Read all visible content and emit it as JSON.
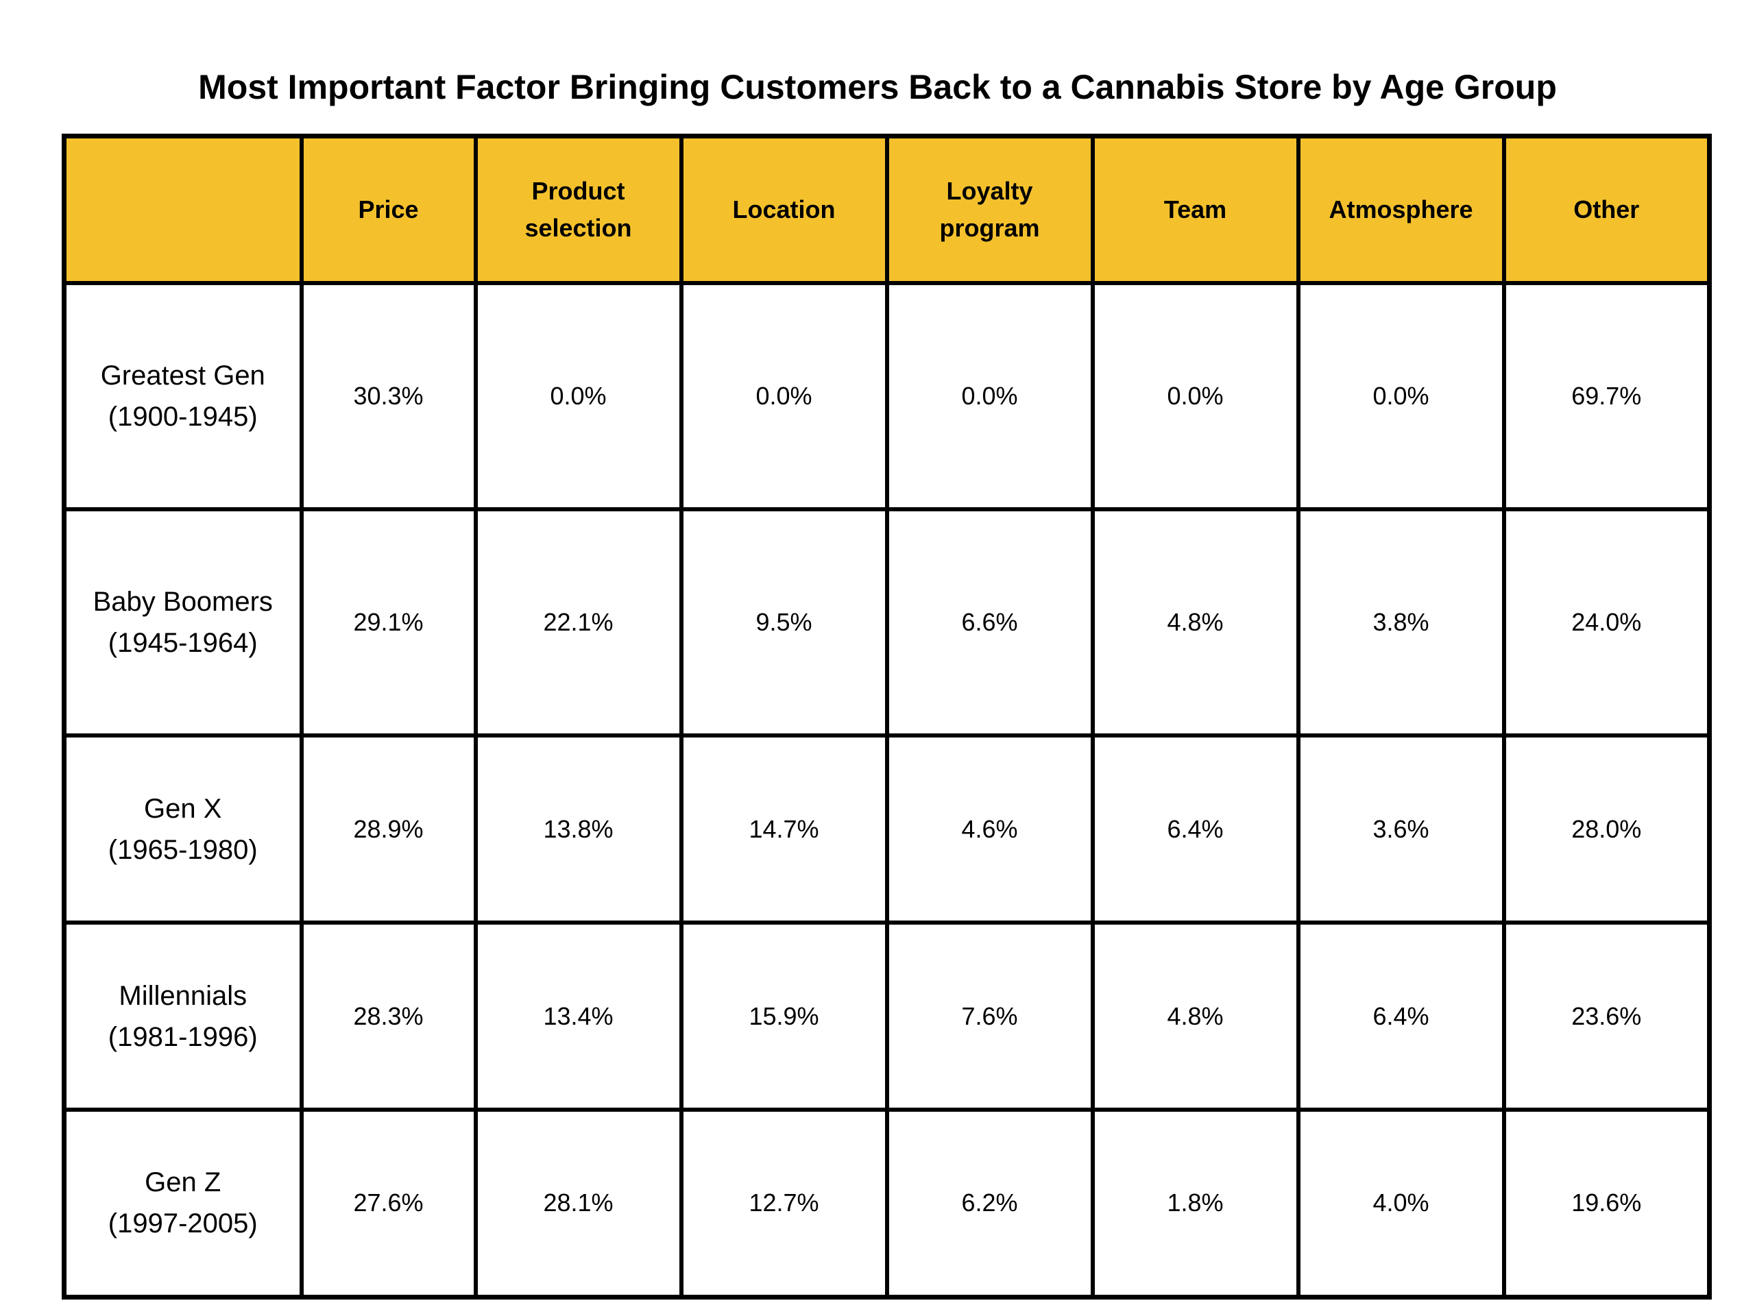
{
  "chart_data": {
    "type": "table",
    "title": "Most Important Factor Bringing Customers Back to a Cannabis Store by Age Group",
    "header_color": "#F4C12D",
    "columns": [
      [
        "Price"
      ],
      [
        "Product",
        "selection"
      ],
      [
        "Location"
      ],
      [
        "Loyalty",
        "program"
      ],
      [
        "Team"
      ],
      [
        "Atmosphere"
      ],
      [
        "Other"
      ]
    ],
    "rows": [
      {
        "group": "Greatest Gen",
        "years": "(1900-1945)",
        "values": [
          "30.3%",
          "0.0%",
          "0.0%",
          "0.0%",
          "0.0%",
          "0.0%",
          "69.7%"
        ]
      },
      {
        "group": "Baby Boomers",
        "years": "(1945-1964)",
        "values": [
          "29.1%",
          "22.1%",
          "9.5%",
          "6.6%",
          "4.8%",
          "3.8%",
          "24.0%"
        ]
      },
      {
        "group": "Gen X",
        "years": "(1965-1980)",
        "values": [
          "28.9%",
          "13.8%",
          "14.7%",
          "4.6%",
          "6.4%",
          "3.6%",
          "28.0%"
        ]
      },
      {
        "group": "Millennials",
        "years": "(1981-1996)",
        "values": [
          "28.3%",
          "13.4%",
          "15.9%",
          "7.6%",
          "4.8%",
          "6.4%",
          "23.6%"
        ]
      },
      {
        "group": "Gen Z",
        "years": "(1997-2005)",
        "values": [
          "27.6%",
          "28.1%",
          "12.7%",
          "6.2%",
          "1.8%",
          "4.0%",
          "19.6%"
        ]
      }
    ]
  }
}
